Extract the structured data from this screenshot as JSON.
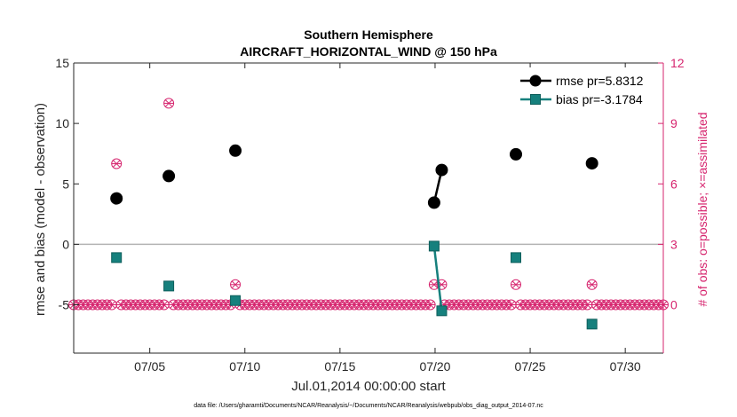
{
  "chart_data": {
    "type": "line",
    "title": "Southern Hemisphere",
    "subtitle": "AIRCRAFT_HORIZONTAL_WIND @ 150 hPa",
    "xlabel": "Jul.01,2014 00:00:00 start",
    "ylabel": "rmse and bias (model - observation)",
    "ylabel_right": "# of obs: o=possible; ×=assimilated",
    "footnote": "data file: /Users/gharamti/Documents/NCAR/Reanalysis/~/Documents/NCAR/Reanalysis/webpub/obs_diag_output_2014-07.nc",
    "xlim": [
      1.0,
      32.0
    ],
    "ylim": [
      -9,
      15
    ],
    "ylim_right": [
      -2.4,
      12
    ],
    "x_ticks": [
      {
        "x": 5,
        "label": "07/05"
      },
      {
        "x": 10,
        "label": "07/10"
      },
      {
        "x": 15,
        "label": "07/15"
      },
      {
        "x": 20,
        "label": "07/20"
      },
      {
        "x": 25,
        "label": "07/25"
      },
      {
        "x": 30,
        "label": "07/30"
      }
    ],
    "y_ticks": [
      {
        "v": 15,
        "label": "15"
      },
      {
        "v": 10,
        "label": "10"
      },
      {
        "v": 5,
        "label": "5"
      },
      {
        "v": 0,
        "label": "0"
      },
      {
        "v": -5,
        "label": "-5"
      }
    ],
    "y_ticks_right": [
      {
        "v": 12,
        "label": "12"
      },
      {
        "v": 9,
        "label": "9"
      },
      {
        "v": 6,
        "label": "6"
      },
      {
        "v": 3,
        "label": "3"
      },
      {
        "v": 0,
        "label": "0"
      }
    ],
    "colors": {
      "rmse": "#000000",
      "bias": "#16807d",
      "obs": "#d6246e",
      "zero_line": "#b3b3b3"
    },
    "series": [
      {
        "name": "rmse",
        "legend": "rmse pr=5.8312",
        "points": [
          [
            3.25,
            3.8
          ],
          [
            6.0,
            5.65
          ],
          [
            9.5,
            7.75
          ],
          [
            19.95,
            3.45
          ],
          [
            20.35,
            6.15
          ],
          [
            24.25,
            7.45
          ],
          [
            28.25,
            6.7
          ]
        ],
        "segments": [
          [
            [
              19.95,
              3.45
            ],
            [
              20.35,
              6.15
            ]
          ]
        ]
      },
      {
        "name": "bias",
        "legend": "bias pr=-3.1784",
        "points": [
          [
            3.25,
            -1.1
          ],
          [
            6.0,
            -3.45
          ],
          [
            9.5,
            -4.65
          ],
          [
            19.95,
            -0.15
          ],
          [
            20.35,
            -5.5
          ],
          [
            24.25,
            -1.1
          ],
          [
            28.25,
            -6.6
          ]
        ],
        "segments": [
          [
            [
              19.95,
              -0.15
            ],
            [
              20.35,
              -5.5
            ]
          ]
        ]
      }
    ],
    "obs_counts": {
      "baseline_start": 1.0,
      "baseline_end": 32.0,
      "baseline_step": 0.25,
      "baseline_value": 0,
      "nonzero": [
        [
          3.25,
          7
        ],
        [
          6.0,
          10
        ],
        [
          9.5,
          1
        ],
        [
          19.95,
          1
        ],
        [
          20.35,
          1
        ],
        [
          24.25,
          1
        ],
        [
          28.25,
          1
        ]
      ]
    }
  }
}
